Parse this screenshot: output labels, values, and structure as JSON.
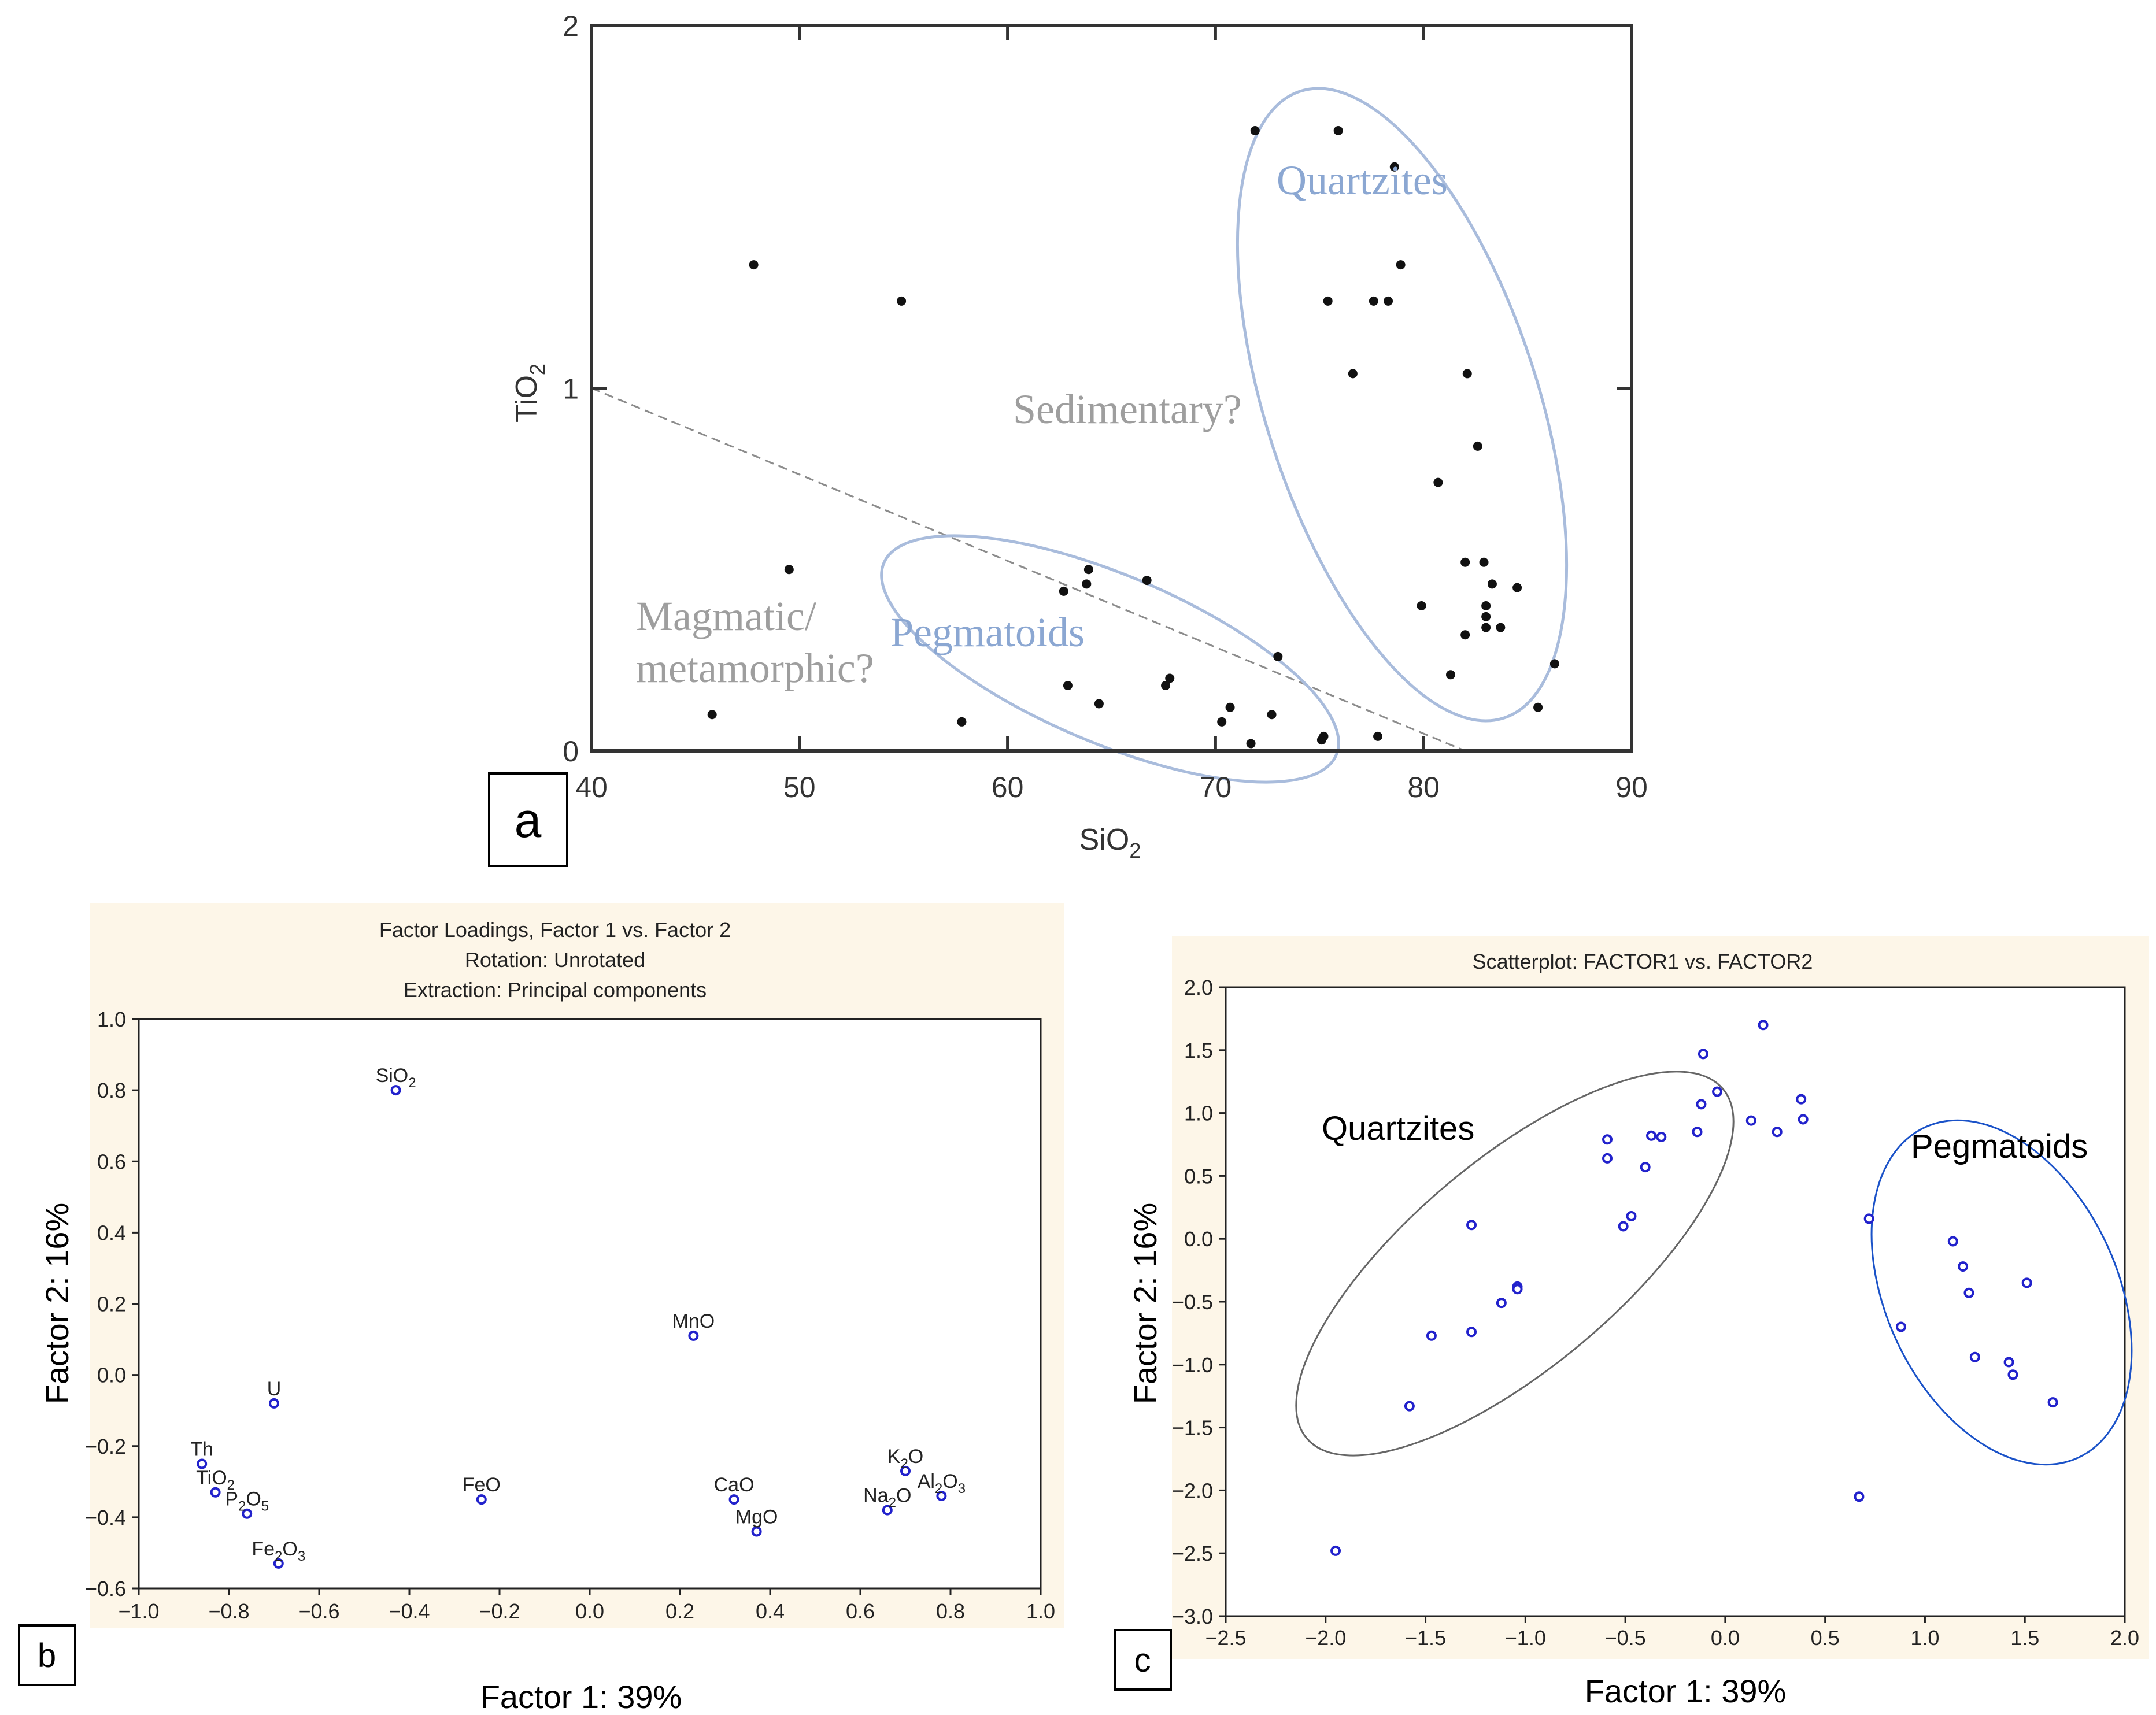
{
  "chart_data": [
    {
      "panel": "a",
      "type": "scatter",
      "title": "",
      "xlabel": "SiO",
      "xlabel_sub": "2",
      "ylabel": "TiO",
      "ylabel_sub": "2",
      "xlim": [
        40,
        90
      ],
      "ylim": [
        0,
        2
      ],
      "xticks": [
        40,
        50,
        60,
        70,
        80,
        90
      ],
      "yticks": [
        0,
        1,
        2
      ],
      "series": [
        {
          "name": "samples",
          "color": "#111111",
          "points": [
            [
              45.8,
              0.1
            ],
            [
              47.8,
              1.34
            ],
            [
              49.5,
              0.5
            ],
            [
              54.9,
              1.24
            ],
            [
              57.8,
              0.08
            ],
            [
              62.7,
              0.44
            ],
            [
              62.9,
              0.18
            ],
            [
              63.8,
              0.46
            ],
            [
              63.9,
              0.5
            ],
            [
              64.4,
              0.13
            ],
            [
              66.7,
              0.47
            ],
            [
              67.6,
              0.18
            ],
            [
              67.8,
              0.2
            ],
            [
              70.3,
              0.08
            ],
            [
              70.7,
              0.12
            ],
            [
              71.7,
              0.02
            ],
            [
              71.9,
              1.71
            ],
            [
              72.7,
              0.1
            ],
            [
              73.0,
              0.26
            ],
            [
              75.1,
              0.03
            ],
            [
              75.2,
              0.04
            ],
            [
              75.4,
              1.24
            ],
            [
              75.9,
              1.71
            ],
            [
              76.6,
              1.04
            ],
            [
              77.6,
              1.24
            ],
            [
              77.8,
              0.04
            ],
            [
              78.3,
              1.24
            ],
            [
              78.6,
              1.61
            ],
            [
              78.9,
              1.34
            ],
            [
              79.9,
              0.4
            ],
            [
              80.7,
              0.74
            ],
            [
              81.3,
              0.21
            ],
            [
              82.0,
              0.52
            ],
            [
              82.1,
              1.04
            ],
            [
              82.0,
              0.32
            ],
            [
              82.6,
              0.84
            ],
            [
              82.9,
              0.52
            ],
            [
              83.0,
              0.4
            ],
            [
              83.0,
              0.37
            ],
            [
              83.0,
              0.34
            ],
            [
              83.3,
              0.46
            ],
            [
              83.7,
              0.34
            ],
            [
              84.5,
              0.45
            ],
            [
              85.5,
              0.12
            ],
            [
              86.3,
              0.24
            ]
          ]
        }
      ],
      "annotations": [
        {
          "text": "Quartzites",
          "color": "#8ba7d2"
        },
        {
          "text": "Sedimentary?",
          "color": "#9e9e9e"
        },
        {
          "text": "Magmatic/",
          "color": "#9e9e9e"
        },
        {
          "text": "metamorphic?",
          "color": "#9e9e9e"
        },
        {
          "text": "Pegmatoids",
          "color": "#8ba7d2"
        }
      ],
      "guide_line": {
        "from": [
          40,
          1.0
        ],
        "to": [
          82,
          0
        ]
      },
      "ellipses": [
        {
          "group": "Quartzites",
          "color": "#a9bcdc"
        },
        {
          "group": "Pegmatoids",
          "color": "#a9bcdc"
        }
      ],
      "label": "a"
    },
    {
      "panel": "b",
      "type": "scatter",
      "title": [
        "Factor Loadings, Factor 1 vs. Factor 2",
        "Rotation: Unrotated",
        "Extraction: Principal components"
      ],
      "xlabel": "Factor 1: 39%",
      "ylabel": "Factor 2: 16%",
      "xlim": [
        -1.0,
        1.0
      ],
      "ylim": [
        -0.6,
        1.0
      ],
      "xticks": [
        "-1.0",
        "-0.8",
        "-0.6",
        "-0.4",
        "-0.2",
        "0.0",
        "0.2",
        "0.4",
        "0.6",
        "0.8",
        "1.0"
      ],
      "yticks": [
        "-0.6",
        "-0.4",
        "-0.2",
        "0.0",
        "0.2",
        "0.4",
        "0.6",
        "0.8",
        "1.0"
      ],
      "points": [
        {
          "label": "SiO",
          "sub": "2",
          "rest": "",
          "x": -0.43,
          "y": 0.8
        },
        {
          "label": "MnO",
          "sub": "",
          "rest": "",
          "x": 0.23,
          "y": 0.11
        },
        {
          "label": "U",
          "sub": "",
          "rest": "",
          "x": -0.7,
          "y": -0.08
        },
        {
          "label": "Th",
          "sub": "",
          "rest": "",
          "x": -0.86,
          "y": -0.25
        },
        {
          "label": "TiO",
          "sub": "2",
          "rest": "",
          "x": -0.83,
          "y": -0.33
        },
        {
          "label": "P",
          "sub": "2",
          "rest": "O",
          "sub2": "5",
          "x": -0.76,
          "y": -0.39
        },
        {
          "label": "Fe",
          "sub": "2",
          "rest": "O",
          "sub2": "3",
          "x": -0.69,
          "y": -0.53
        },
        {
          "label": "FeO",
          "sub": "",
          "rest": "",
          "x": -0.24,
          "y": -0.35
        },
        {
          "label": "CaO",
          "sub": "",
          "rest": "",
          "x": 0.32,
          "y": -0.35
        },
        {
          "label": "MgO",
          "sub": "",
          "rest": "",
          "x": 0.37,
          "y": -0.44
        },
        {
          "label": "Na",
          "sub": "2",
          "rest": "O",
          "x": 0.66,
          "y": -0.38
        },
        {
          "label": "K",
          "sub": "2",
          "rest": "O",
          "x": 0.7,
          "y": -0.27
        },
        {
          "label": "Al",
          "sub": "2",
          "rest": "O",
          "sub2": "3",
          "x": 0.78,
          "y": -0.34
        }
      ],
      "marker_color": "#2222cc",
      "label": "b"
    },
    {
      "panel": "c",
      "type": "scatter",
      "title": "Scatterplot: FACTOR1  vs. FACTOR2",
      "xlabel": "Factor 1: 39%",
      "ylabel": "Factor 2: 16%",
      "xlim": [
        -2.5,
        2.0
      ],
      "ylim": [
        -3.0,
        2.0
      ],
      "xticks": [
        "-2.5",
        "-2.0",
        "-1.5",
        "-1.0",
        "-0.5",
        "0.0",
        "0.5",
        "1.0",
        "1.5",
        "2.0"
      ],
      "yticks": [
        "-3.0",
        "-2.5",
        "-2.0",
        "-1.5",
        "-1.0",
        "-0.5",
        "0.0",
        "0.5",
        "1.0",
        "1.5",
        "2.0"
      ],
      "series": [
        {
          "name": "samples",
          "color": "#2222cc",
          "points": [
            [
              -1.95,
              -2.48
            ],
            [
              -1.58,
              -1.33
            ],
            [
              -1.47,
              -0.77
            ],
            [
              -1.27,
              -0.74
            ],
            [
              -1.27,
              0.11
            ],
            [
              -1.12,
              -0.51
            ],
            [
              -1.04,
              -0.38
            ],
            [
              -1.04,
              -0.4
            ],
            [
              -0.59,
              0.79
            ],
            [
              -0.59,
              0.64
            ],
            [
              -0.51,
              0.1
            ],
            [
              -0.47,
              0.18
            ],
            [
              -0.4,
              0.57
            ],
            [
              -0.37,
              0.82
            ],
            [
              -0.32,
              0.81
            ],
            [
              -0.14,
              0.85
            ],
            [
              -0.12,
              1.07
            ],
            [
              -0.11,
              1.47
            ],
            [
              -0.04,
              1.17
            ],
            [
              0.13,
              0.94
            ],
            [
              0.19,
              1.7
            ],
            [
              0.26,
              0.85
            ],
            [
              0.38,
              1.11
            ],
            [
              0.39,
              0.95
            ],
            [
              0.67,
              -2.05
            ],
            [
              0.72,
              0.16
            ],
            [
              0.88,
              -0.7
            ],
            [
              1.14,
              -0.02
            ],
            [
              1.19,
              -0.22
            ],
            [
              1.22,
              -0.43
            ],
            [
              1.25,
              -0.94
            ],
            [
              1.42,
              -0.98
            ],
            [
              1.44,
              -1.08
            ],
            [
              1.51,
              -0.35
            ],
            [
              1.64,
              -1.3
            ]
          ]
        }
      ],
      "annotations": [
        {
          "text": "Quartzites",
          "color": "#000000"
        },
        {
          "text": "Pegmatoids",
          "color": "#000000"
        }
      ],
      "ellipses": [
        {
          "group": "Quartzites",
          "color": "#666666"
        },
        {
          "group": "Pegmatoids",
          "color": "#1a52c8"
        }
      ],
      "label": "c"
    }
  ]
}
